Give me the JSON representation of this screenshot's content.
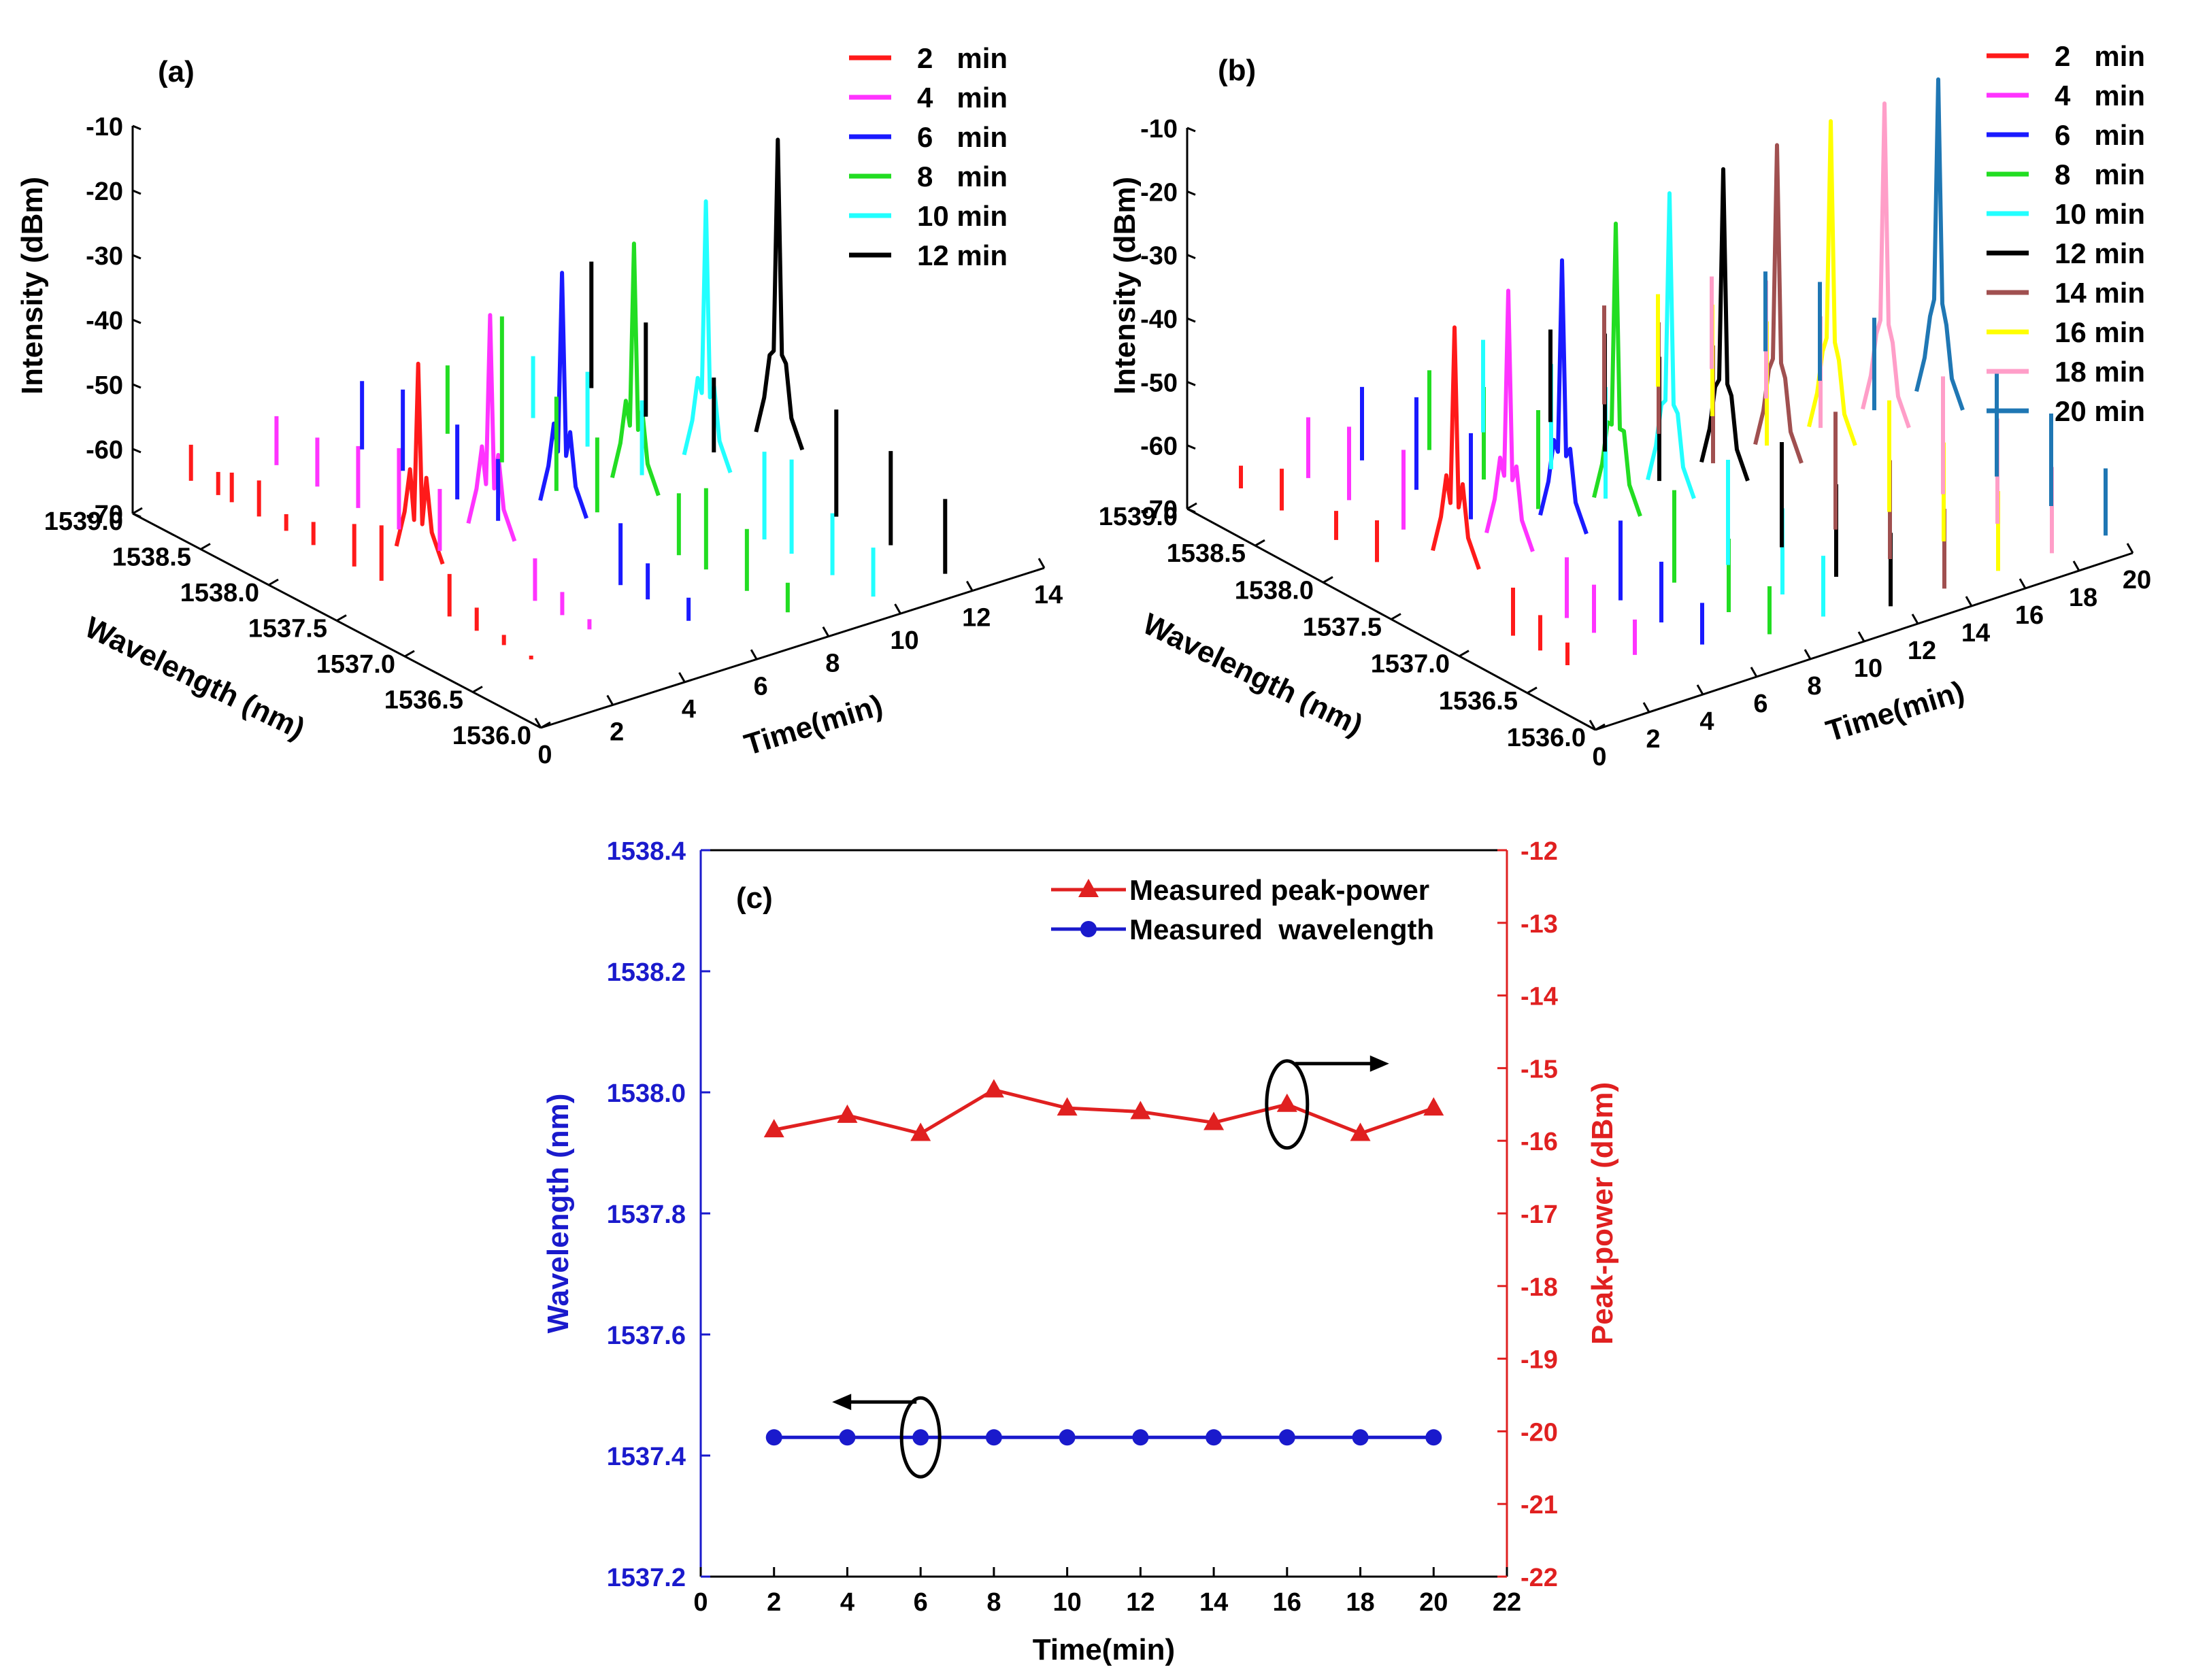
{
  "colors": {
    "2": "#ff1a1a",
    "4": "#ff33ff",
    "6": "#1a1aff",
    "8": "#22dd22",
    "10": "#22ffff",
    "12": "#000000",
    "14": "#a05050",
    "16": "#ffff00",
    "18": "#ff9ec8",
    "20": "#1f77b4",
    "wavelength_axis": "#1a1acc",
    "power_axis": "#e02020"
  },
  "chart_data": [
    {
      "type": "line",
      "panel": "(a)",
      "subtype": "3d-waterfall",
      "zlabel": "Intensity (dBm)",
      "ylabel": "Wavelength (nm)",
      "xlabel": "Time(min)",
      "zlim": [
        -70,
        -10
      ],
      "z_ticks": [
        "-10",
        "-20",
        "-30",
        "-40",
        "-50",
        "-60",
        "-70"
      ],
      "wavelength_ticks": [
        "1539.0",
        "1538.5",
        "1538.0",
        "1537.5",
        "1537.0",
        "1536.5",
        "1536.0"
      ],
      "time_ticks": [
        "0",
        "2",
        "4",
        "6",
        "8",
        "10",
        "12",
        "14"
      ],
      "wavelength_range": [
        1536.0,
        1539.0
      ],
      "time_range": [
        0,
        14
      ],
      "series": [
        {
          "key": "2",
          "time": 2,
          "legend": "2   min",
          "peak_wavelength": 1537.43,
          "peak_dbm": -33,
          "noise": [
            [
              1539.1,
              -64
            ],
            [
              1538.9,
              -66
            ],
            [
              1538.8,
              -65
            ],
            [
              1538.6,
              -64
            ],
            [
              1538.4,
              -67
            ],
            [
              1538.2,
              -66
            ],
            [
              1537.9,
              -63
            ],
            [
              1537.7,
              -61
            ],
            [
              1537.2,
              -63
            ],
            [
              1537.0,
              -66
            ],
            [
              1536.8,
              -68
            ],
            [
              1536.6,
              -69
            ]
          ]
        },
        {
          "key": "4",
          "time": 4,
          "legend": "4   min",
          "peak_wavelength": 1537.43,
          "peak_dbm": -29,
          "noise": [
            [
              1539.0,
              -62
            ],
            [
              1538.7,
              -62
            ],
            [
              1538.4,
              -60
            ],
            [
              1538.1,
              -57
            ],
            [
              1537.8,
              -60
            ],
            [
              1537.1,
              -63
            ],
            [
              1536.9,
              -66
            ],
            [
              1536.7,
              -68
            ]
          ]
        },
        {
          "key": "6",
          "time": 6,
          "legend": "6   min",
          "peak_wavelength": 1537.43,
          "peak_dbm": -26,
          "noise": [
            [
              1538.9,
              -59
            ],
            [
              1538.6,
              -57
            ],
            [
              1538.2,
              -58
            ],
            [
              1537.9,
              -60
            ],
            [
              1537.0,
              -60
            ],
            [
              1536.8,
              -64
            ],
            [
              1536.5,
              -66
            ]
          ]
        },
        {
          "key": "8",
          "time": 8,
          "legend": "8   min",
          "peak_wavelength": 1537.43,
          "peak_dbm": -25,
          "noise": [
            [
              1538.8,
              -59
            ],
            [
              1538.4,
              -47
            ],
            [
              1538.0,
              -55
            ],
            [
              1537.7,
              -58
            ],
            [
              1537.1,
              -60
            ],
            [
              1536.9,
              -57
            ],
            [
              1536.6,
              -60
            ],
            [
              1536.3,
              -65
            ]
          ]
        },
        {
          "key": "10",
          "time": 10,
          "legend": "10 min",
          "peak_wavelength": 1537.43,
          "peak_dbm": -22,
          "noise": [
            [
              1538.7,
              -60
            ],
            [
              1538.3,
              -58
            ],
            [
              1537.9,
              -58
            ],
            [
              1537.0,
              -56
            ],
            [
              1536.8,
              -55
            ],
            [
              1536.5,
              -60
            ],
            [
              1536.2,
              -62
            ]
          ]
        },
        {
          "key": "12",
          "time": 12,
          "legend": "12 min",
          "peak_wavelength": 1537.43,
          "peak_dbm": -16,
          "noise": [
            [
              1538.8,
              -50
            ],
            [
              1538.4,
              -55
            ],
            [
              1537.9,
              -58
            ],
            [
              1537.0,
              -53
            ],
            [
              1536.6,
              -55
            ],
            [
              1536.2,
              -58
            ]
          ]
        }
      ]
    },
    {
      "type": "line",
      "panel": "(b)",
      "subtype": "3d-waterfall",
      "zlabel": "Intensity (dBm)",
      "ylabel": "Wavelength (nm)",
      "xlabel": "Time(min)",
      "zlim": [
        -70,
        -10
      ],
      "z_ticks": [
        "-10",
        "-20",
        "-30",
        "-40",
        "-50",
        "-60",
        "-70"
      ],
      "wavelength_ticks": [
        "1539.0",
        "1538.5",
        "1538.0",
        "1537.5",
        "1537.0",
        "1536.5",
        "1536.0"
      ],
      "time_ticks": [
        "0",
        "2",
        "4",
        "6",
        "8",
        "10",
        "12",
        "14",
        "16",
        "18",
        "20"
      ],
      "wavelength_range": [
        1536.0,
        1539.0
      ],
      "time_range": [
        0,
        20
      ],
      "series": [
        {
          "key": "2",
          "time": 2,
          "legend": "2   min",
          "peak_wavelength": 1537.43,
          "peak_dbm": -26,
          "noise": [
            [
              1539.0,
              -66
            ],
            [
              1538.7,
              -63
            ],
            [
              1538.3,
              -65
            ],
            [
              1538.0,
              -63
            ],
            [
              1537.0,
              -62
            ],
            [
              1536.8,
              -64
            ],
            [
              1536.6,
              -66
            ]
          ]
        },
        {
          "key": "4",
          "time": 4,
          "legend": "4   min",
          "peak_wavelength": 1537.43,
          "peak_dbm": -23,
          "noise": [
            [
              1538.9,
              -60
            ],
            [
              1538.6,
              -58
            ],
            [
              1538.2,
              -57
            ],
            [
              1537.0,
              -60
            ],
            [
              1536.8,
              -62
            ],
            [
              1536.5,
              -64
            ]
          ]
        },
        {
          "key": "6",
          "time": 6,
          "legend": "6   min",
          "peak_wavelength": 1537.43,
          "peak_dbm": -21,
          "noise": [
            [
              1538.9,
              -58
            ],
            [
              1538.5,
              -55
            ],
            [
              1538.1,
              -56
            ],
            [
              1537.0,
              -57
            ],
            [
              1536.7,
              -60
            ],
            [
              1536.4,
              -63
            ]
          ]
        },
        {
          "key": "8",
          "time": 8,
          "legend": "8   min",
          "peak_wavelength": 1537.43,
          "peak_dbm": -18,
          "noise": [
            [
              1538.8,
              -57
            ],
            [
              1538.4,
              -55
            ],
            [
              1538.0,
              -54
            ],
            [
              1537.0,
              -55
            ],
            [
              1536.6,
              -58
            ],
            [
              1536.3,
              -62
            ]
          ]
        },
        {
          "key": "10",
          "time": 10,
          "legend": "10 min",
          "peak_wavelength": 1537.43,
          "peak_dbm": -16,
          "noise": [
            [
              1538.8,
              -55
            ],
            [
              1538.3,
              -53
            ],
            [
              1537.9,
              -52
            ],
            [
              1537.0,
              -53
            ],
            [
              1536.6,
              -56
            ],
            [
              1536.3,
              -60
            ]
          ]
        },
        {
          "key": "12",
          "time": 12,
          "legend": "12 min",
          "peak_wavelength": 1537.43,
          "peak_dbm": -15,
          "noise": [
            [
              1538.7,
              -55
            ],
            [
              1538.3,
              -51
            ],
            [
              1537.9,
              -50
            ],
            [
              1537.0,
              -53
            ],
            [
              1536.6,
              -55
            ],
            [
              1536.2,
              -58
            ]
          ]
        },
        {
          "key": "14",
          "time": 14,
          "legend": "14 min",
          "peak_wavelength": 1537.43,
          "peak_dbm": -14,
          "noise": [
            [
              1538.7,
              -54
            ],
            [
              1538.3,
              -52
            ],
            [
              1537.9,
              -51
            ],
            [
              1537.0,
              -51
            ],
            [
              1536.6,
              -54
            ],
            [
              1536.2,
              -57
            ]
          ]
        },
        {
          "key": "16",
          "time": 16,
          "legend": "16 min",
          "peak_wavelength": 1537.43,
          "peak_dbm": -13,
          "noise": [
            [
              1538.7,
              -55
            ],
            [
              1538.3,
              -52
            ],
            [
              1537.9,
              -50
            ],
            [
              1537.0,
              -52
            ],
            [
              1536.6,
              -54
            ],
            [
              1536.2,
              -57
            ]
          ]
        },
        {
          "key": "18",
          "time": 18,
          "legend": "18 min",
          "peak_wavelength": 1537.43,
          "peak_dbm": -13,
          "noise": [
            [
              1538.7,
              -55
            ],
            [
              1538.3,
              -51
            ],
            [
              1537.9,
              -52
            ],
            [
              1537.0,
              -51
            ],
            [
              1536.6,
              -53
            ],
            [
              1536.2,
              -56
            ]
          ]
        },
        {
          "key": "20",
          "time": 20,
          "legend": "20 min",
          "peak_wavelength": 1537.43,
          "peak_dbm": -12,
          "noise": [
            [
              1538.7,
              -57
            ],
            [
              1538.3,
              -54
            ],
            [
              1537.9,
              -55
            ],
            [
              1537.0,
              -53
            ],
            [
              1536.6,
              -55
            ],
            [
              1536.2,
              -59
            ]
          ]
        }
      ]
    },
    {
      "type": "line",
      "panel": "(c)",
      "xlabel": "Time(min)",
      "ylabel_left": "Wavelength (nm)",
      "ylabel_right": "Peak-power (dBm)",
      "xlim": [
        0,
        22
      ],
      "ylim_left": [
        1537.2,
        1538.4
      ],
      "ylim_right": [
        -22,
        -12
      ],
      "x_ticks": [
        "0",
        "2",
        "4",
        "6",
        "8",
        "10",
        "12",
        "14",
        "16",
        "18",
        "20",
        "22"
      ],
      "y_left_ticks": [
        "1538.4",
        "1538.2",
        "1538.0",
        "1537.8",
        "1537.6",
        "1537.4",
        "1537.2"
      ],
      "y_right_ticks": [
        "-12",
        "-13",
        "-14",
        "-15",
        "-16",
        "-17",
        "-18",
        "-19",
        "-20",
        "-21",
        "-22"
      ],
      "x": [
        2,
        4,
        6,
        8,
        10,
        12,
        14,
        16,
        18,
        20
      ],
      "series": [
        {
          "name": "Measured peak-power",
          "axis": "right",
          "marker": "triangle",
          "color": "#e02020",
          "values": [
            -15.85,
            -15.65,
            -15.9,
            -15.3,
            -15.55,
            -15.6,
            -15.75,
            -15.5,
            -15.9,
            -15.55
          ]
        },
        {
          "name": "Measured  wavelength",
          "axis": "left",
          "marker": "circle",
          "color": "#1a1acc",
          "values": [
            1537.43,
            1537.43,
            1537.43,
            1537.43,
            1537.43,
            1537.43,
            1537.43,
            1537.43,
            1537.43,
            1537.43
          ]
        }
      ]
    }
  ]
}
